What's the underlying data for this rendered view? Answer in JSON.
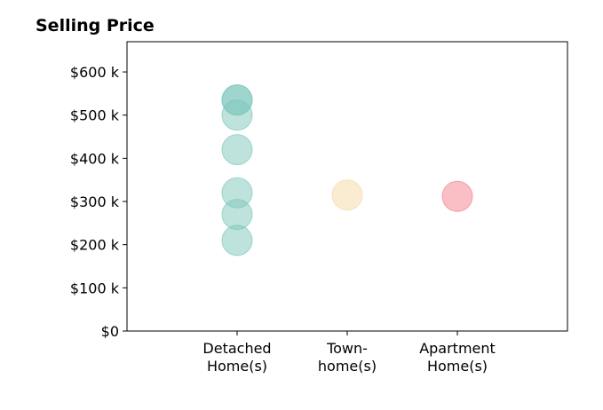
{
  "chart_data": {
    "type": "scatter",
    "title": "Selling Price",
    "xlabel": "",
    "ylabel": "",
    "categories": [
      [
        "Detached",
        "Home(s)"
      ],
      [
        "Town-",
        "home(s)"
      ],
      [
        "Apartment",
        "Home(s)"
      ]
    ],
    "xlim": [
      0,
      4
    ],
    "ylim": [
      0,
      670
    ],
    "yticks": [
      0,
      100,
      200,
      300,
      400,
      500,
      600
    ],
    "ytick_labels": [
      "$0",
      "$100 k",
      "$200 k",
      "$300 k",
      "$400 k",
      "$500 k",
      "$600 k"
    ],
    "grid": false,
    "series": [
      {
        "category_index": 0,
        "color": "#7ec8bc",
        "opacity": 0.5,
        "values": [
          535,
          535,
          500,
          420,
          320,
          270,
          210
        ]
      },
      {
        "category_index": 1,
        "color": "#f5dfb0",
        "opacity": 0.6,
        "values": [
          315
        ]
      },
      {
        "category_index": 2,
        "color": "#f48a94",
        "opacity": 0.55,
        "values": [
          312
        ]
      }
    ]
  }
}
